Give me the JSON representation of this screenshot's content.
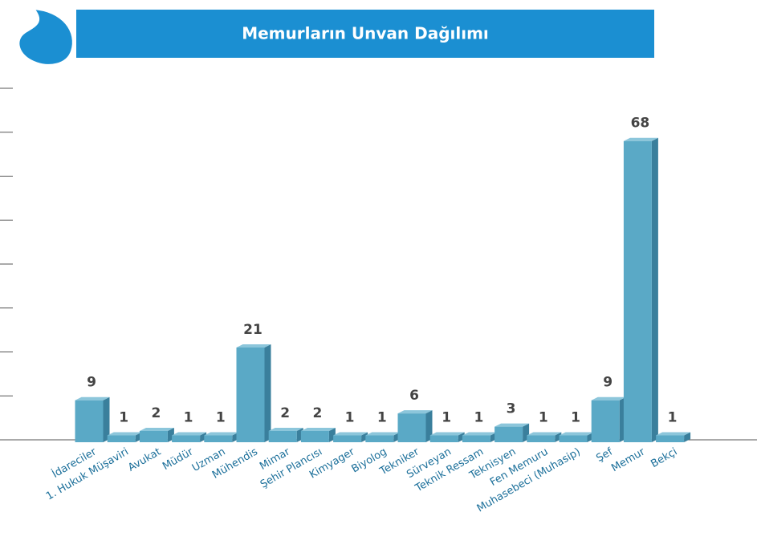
{
  "chart_data": {
    "type": "bar",
    "title": "Memurların Unvan Dağılımı",
    "categories": [
      "İdareciler",
      "1. Hukuk Müşaviri",
      "Avukat",
      "Müdür",
      "Uzman",
      "Mühendis",
      "Mimar",
      "Şehir Plancısı",
      "Kimyager",
      "Biyolog",
      "Tekniker",
      "Sürveyan",
      "Teknik Ressam",
      "Teknisyen",
      "Fen Memuru",
      "Muhasebeci (Muhasip)",
      "Şef",
      "Memur",
      "Bekçi"
    ],
    "values": [
      9,
      1,
      2,
      1,
      1,
      21,
      2,
      2,
      1,
      1,
      6,
      1,
      1,
      3,
      1,
      1,
      9,
      68,
      1
    ],
    "color": "#5aa9c6",
    "ylim": [
      0,
      80
    ],
    "yticks": [
      0,
      10,
      20,
      30,
      40,
      50,
      60,
      70,
      80
    ]
  }
}
